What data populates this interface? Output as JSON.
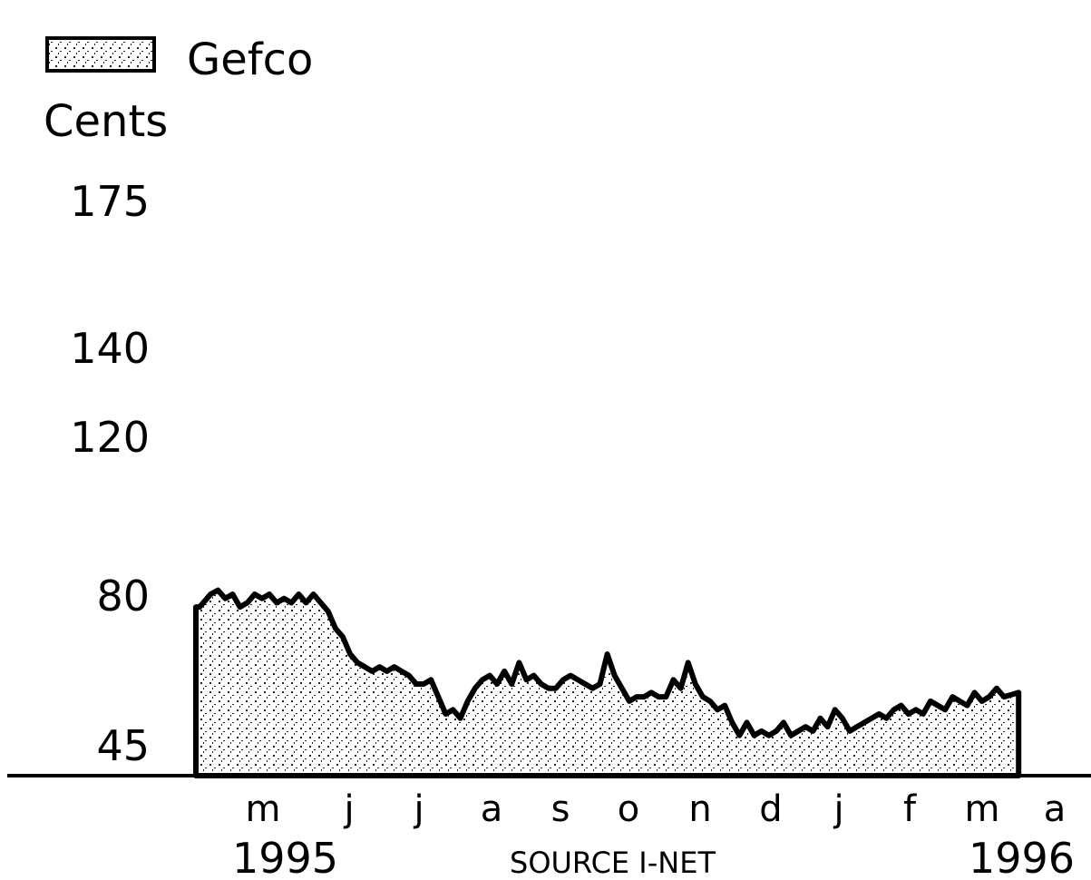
{
  "chart_data": {
    "type": "area",
    "legend": {
      "label": "Gefco",
      "placement": "top-left"
    },
    "ylabel": "Cents",
    "ytick_labels": [
      "175",
      "140",
      "120",
      "80",
      "45"
    ],
    "ytick_values": [
      175,
      140,
      120,
      80,
      45
    ],
    "ylim": [
      45,
      175
    ],
    "xtick_labels": [
      "m",
      "j",
      "j",
      "a",
      "s",
      "o",
      "n",
      "d",
      "j",
      "f",
      "m",
      "a"
    ],
    "year_labels": [
      "1995",
      "1996"
    ],
    "source": "SOURCE I-NET",
    "grid": false,
    "series": [
      {
        "name": "Gefco",
        "x": [
          0.0,
          0.05,
          0.1,
          0.2,
          0.3,
          0.4,
          0.5,
          0.6,
          0.7,
          0.8,
          0.9,
          1.0,
          1.1,
          1.2,
          1.3,
          1.4,
          1.5,
          1.6,
          1.7,
          1.8,
          1.9,
          2.0,
          2.1,
          2.2,
          2.3,
          2.4,
          2.5,
          2.6,
          2.7,
          2.8,
          2.9,
          3.0,
          3.1,
          3.2,
          3.3,
          3.4,
          3.5,
          3.6,
          3.7,
          3.8,
          3.9,
          4.0,
          4.1,
          4.2,
          4.3,
          4.4,
          4.5,
          4.6,
          4.7,
          4.8,
          4.9,
          5.0,
          5.1,
          5.2,
          5.3,
          5.4,
          5.5,
          5.6,
          5.7,
          5.8,
          5.9,
          6.0,
          6.1,
          6.2,
          6.3,
          6.4,
          6.5,
          6.6,
          6.7,
          6.8,
          6.9,
          7.0,
          7.1,
          7.2,
          7.3,
          7.4,
          7.5,
          7.6,
          7.7,
          7.8,
          7.9,
          8.0,
          8.1,
          8.2,
          8.3,
          8.4,
          8.5,
          8.6,
          8.7,
          8.8,
          8.9,
          9.0,
          9.1,
          9.2,
          9.3,
          9.4,
          9.5,
          9.6,
          9.7,
          9.8,
          9.9,
          10.0,
          10.1,
          10.2,
          10.3,
          10.4,
          10.5,
          10.6,
          10.7,
          10.8,
          10.9,
          11.0,
          11.2
        ],
        "values": [
          77,
          77,
          78,
          80,
          81,
          79,
          80,
          77,
          78,
          80,
          79,
          80,
          78,
          79,
          78,
          80,
          78,
          80,
          78,
          76,
          72,
          70,
          66,
          64,
          63,
          62,
          63,
          62,
          63,
          62,
          61,
          59,
          59,
          60,
          56,
          52,
          53,
          51,
          55,
          58,
          60,
          61,
          59,
          62,
          59,
          64,
          60,
          61,
          59,
          58,
          58,
          60,
          61,
          60,
          59,
          58,
          59,
          66,
          61,
          58,
          55,
          56,
          56,
          57,
          56,
          56,
          60,
          58,
          64,
          59,
          56,
          55,
          53,
          54,
          50,
          47,
          50,
          47,
          48,
          47,
          48,
          50,
          47,
          48,
          49,
          48,
          51,
          49,
          53,
          51,
          48,
          49,
          50,
          51,
          52,
          51,
          53,
          54,
          52,
          53,
          52,
          55,
          54,
          53,
          56,
          55,
          54,
          57,
          55,
          56,
          58,
          56,
          57
        ]
      }
    ]
  }
}
